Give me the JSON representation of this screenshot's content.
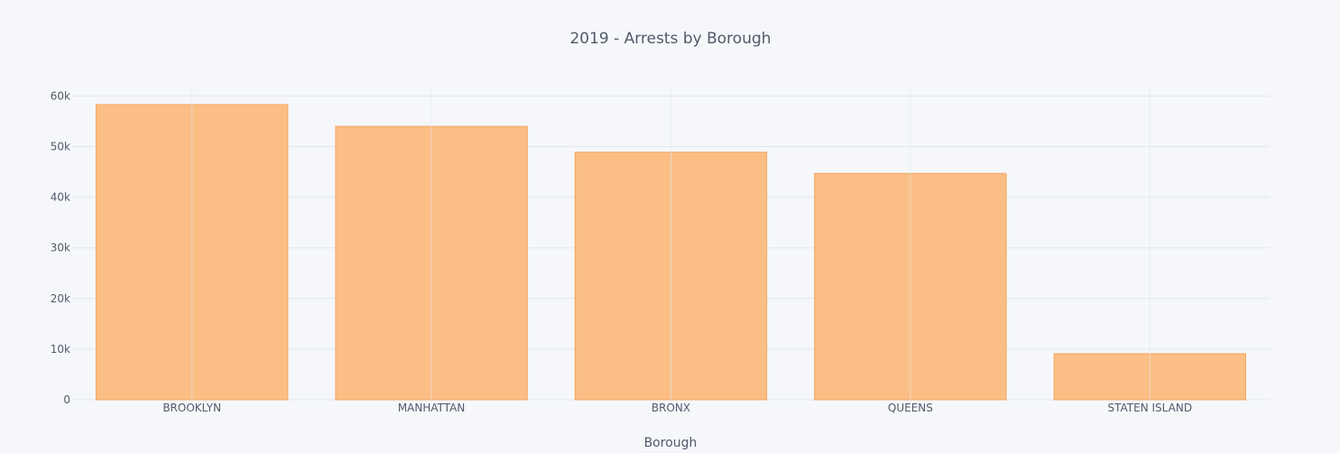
{
  "chart_data": {
    "type": "bar",
    "title": "2019 - Arrests by Borough",
    "xlabel": "Borough",
    "ylabel": "",
    "categories": [
      "BROOKLYN",
      "MANHATTAN",
      "BRONX",
      "QUEENS",
      "STATEN ISLAND"
    ],
    "values": [
      58300,
      54000,
      48900,
      44700,
      9100
    ],
    "ylim": [
      0,
      61500
    ],
    "yticks": [
      0,
      10000,
      20000,
      30000,
      40000,
      50000,
      60000
    ],
    "ytick_labels": [
      "0",
      "10k",
      "20k",
      "30k",
      "40k",
      "50k",
      "60k"
    ],
    "grid": true,
    "colors": {
      "bar_fill": "#FBBF86",
      "bar_edge": "#F5A55C",
      "background": "#F5F7FA"
    }
  }
}
